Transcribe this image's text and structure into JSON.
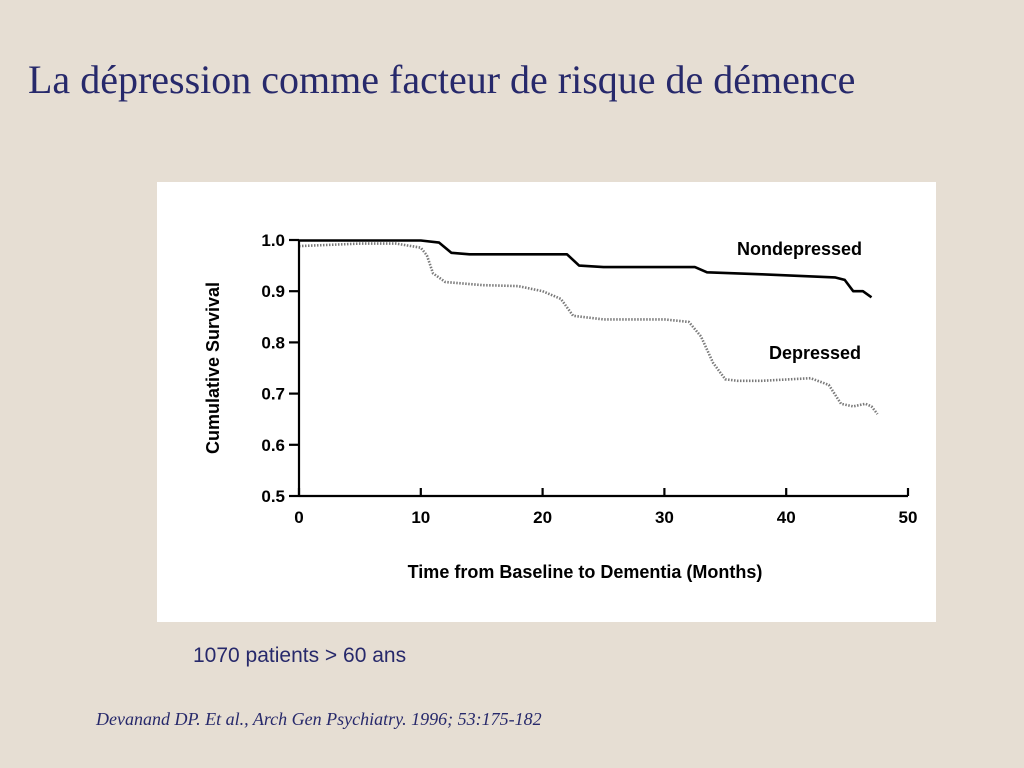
{
  "slide": {
    "title": "La dépression comme facteur de risque de démence",
    "subtitle": "1070 patients > 60 ans",
    "citation": "Devanand DP. Et al., Arch Gen Psychiatry. 1996; 53:175-182",
    "title_color": "#27296b",
    "background_color": "#e6ded3"
  },
  "chart_data": {
    "type": "line",
    "xlabel": "Time from Baseline to Dementia (Months)",
    "ylabel": "Cumulative Survival",
    "xlim": [
      0,
      50
    ],
    "ylim": [
      0.5,
      1.0
    ],
    "x_ticks": [
      0,
      10,
      20,
      30,
      40,
      50
    ],
    "x_tick_labels": [
      "0",
      "10",
      "20",
      "30",
      "40",
      "50"
    ],
    "y_ticks": [
      0.5,
      0.6,
      0.7,
      0.8,
      0.9,
      1.0
    ],
    "y_tick_labels": [
      "0.5",
      "0.6",
      "0.7",
      "0.8",
      "0.9",
      "1.0"
    ],
    "grid": false,
    "series": [
      {
        "name": "Nondepressed",
        "color": "#000000",
        "style": "solid",
        "x": [
          0,
          5,
          10,
          11.5,
          12.5,
          14,
          20,
          22,
          23,
          25,
          30,
          32.5,
          33.5,
          38,
          44,
          44.8,
          45.5,
          46.3,
          47
        ],
        "y": [
          0.999,
          0.999,
          0.999,
          0.995,
          0.975,
          0.972,
          0.972,
          0.972,
          0.95,
          0.947,
          0.947,
          0.947,
          0.937,
          0.933,
          0.927,
          0.922,
          0.9,
          0.9,
          0.888
        ]
      },
      {
        "name": "Depressed",
        "color": "#7a7a7a",
        "style": "dotted",
        "x": [
          0,
          5,
          8,
          10,
          10.5,
          11,
          12,
          15,
          18,
          20,
          21.5,
          22.5,
          25,
          30,
          32,
          33,
          34,
          35,
          36,
          38,
          42,
          43.5,
          44.5,
          45.5,
          46.5,
          47,
          47.5
        ],
        "y": [
          0.988,
          0.993,
          0.993,
          0.985,
          0.97,
          0.935,
          0.918,
          0.912,
          0.91,
          0.9,
          0.885,
          0.852,
          0.845,
          0.845,
          0.84,
          0.812,
          0.76,
          0.728,
          0.725,
          0.725,
          0.73,
          0.717,
          0.68,
          0.675,
          0.68,
          0.675,
          0.66
        ]
      }
    ]
  }
}
